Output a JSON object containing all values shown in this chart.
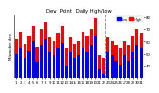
{
  "title": "Dew  Point   Daily High/Low",
  "ylabel_left": "Milwaukee dew",
  "days": [
    1,
    2,
    3,
    4,
    5,
    6,
    7,
    8,
    9,
    10,
    11,
    12,
    13,
    14,
    15,
    16,
    17,
    18,
    19,
    20,
    21,
    22,
    23,
    24,
    25,
    26,
    27,
    28,
    29,
    30,
    31
  ],
  "highs": [
    62,
    68,
    58,
    65,
    73,
    56,
    70,
    76,
    63,
    60,
    67,
    72,
    54,
    63,
    58,
    60,
    68,
    64,
    70,
    79,
    49,
    46,
    63,
    60,
    57,
    54,
    60,
    57,
    64,
    70,
    67
  ],
  "lows": [
    50,
    54,
    46,
    52,
    60,
    43,
    57,
    62,
    51,
    49,
    54,
    59,
    40,
    51,
    46,
    49,
    54,
    51,
    57,
    65,
    37,
    33,
    51,
    49,
    44,
    41,
    49,
    44,
    51,
    57,
    54
  ],
  "high_color": "#ff0000",
  "low_color": "#0000ff",
  "dashed_line_1": 19,
  "dashed_line_2": 21,
  "ylim_min": 30,
  "ylim_max": 82,
  "yticks": [
    40,
    50,
    60,
    70,
    80
  ],
  "ytick_labels": [
    "40",
    "50",
    "60",
    "70",
    "80"
  ],
  "background_color": "#ffffff",
  "legend_high": "High",
  "legend_low": "Low",
  "bar_width": 0.75,
  "title_fontsize": 3.8,
  "tick_fontsize": 2.8,
  "ylabel_fontsize": 2.8
}
